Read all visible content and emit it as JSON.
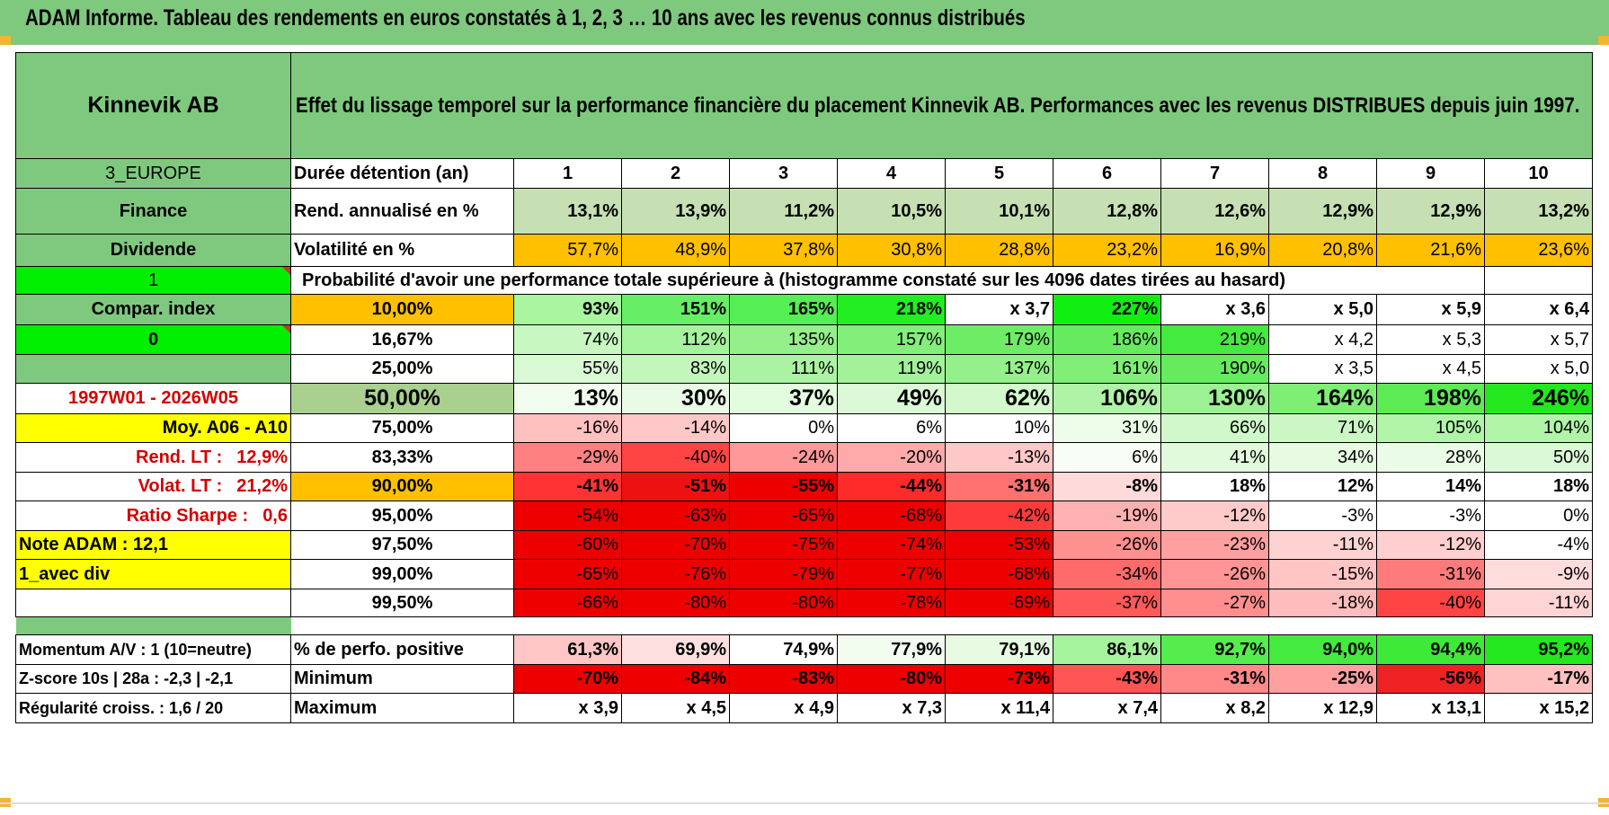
{
  "title": "ADAM Informe. Tableau des rendements en euros constatés à 1, 2, 3 … 10 ans avec les revenus connus distribués",
  "colors": {
    "header_green": "#7fc97f",
    "bright_green": "#00ee00",
    "yellow": "#ffff00",
    "orange": "#ffc000",
    "dark_red": "#ee0000",
    "label_red": "#d40000"
  },
  "sheet": {
    "company": "Kinnevik AB",
    "heading": "Effet du lissage temporel sur la performance financière du placement Kinnevik AB. Performances avec les revenus DISTRIBUES depuis juin 1997.",
    "rows": [
      {
        "label": "3_EUROPE",
        "label_style": "normal",
        "label_bg": "#7fc97f",
        "label_color": "#000000",
        "desc": "Durée détention (an)",
        "desc_bg": "#ffffff",
        "desc_align": "left",
        "row_style": "header",
        "cells": [
          {
            "v": "1",
            "bg": "#ffffff"
          },
          {
            "v": "2",
            "bg": "#ffffff"
          },
          {
            "v": "3",
            "bg": "#ffffff"
          },
          {
            "v": "4",
            "bg": "#ffffff"
          },
          {
            "v": "5",
            "bg": "#ffffff"
          },
          {
            "v": "6",
            "bg": "#ffffff"
          },
          {
            "v": "7",
            "bg": "#ffffff"
          },
          {
            "v": "8",
            "bg": "#ffffff"
          },
          {
            "v": "9",
            "bg": "#ffffff"
          },
          {
            "v": "10",
            "bg": "#ffffff"
          }
        ]
      },
      {
        "label": "Finance",
        "label_style": "bold",
        "label_bg": "#7fc97f",
        "label_color": "#000000",
        "desc": "Rend. annualisé en %",
        "desc_bg": "#ffffff",
        "desc_align": "left",
        "row_style": "bold",
        "cells": [
          {
            "v": "13,1%",
            "bg": "#c6e0b4"
          },
          {
            "v": "13,9%",
            "bg": "#c6e0b4"
          },
          {
            "v": "11,2%",
            "bg": "#c6e0b4"
          },
          {
            "v": "10,5%",
            "bg": "#c6e0b4"
          },
          {
            "v": "10,1%",
            "bg": "#c6e0b4"
          },
          {
            "v": "12,8%",
            "bg": "#c6e0b4"
          },
          {
            "v": "12,6%",
            "bg": "#c6e0b4"
          },
          {
            "v": "12,9%",
            "bg": "#c6e0b4"
          },
          {
            "v": "12,9%",
            "bg": "#c6e0b4"
          },
          {
            "v": "13,2%",
            "bg": "#c6e0b4"
          }
        ]
      },
      {
        "label": "Dividende",
        "label_style": "bold",
        "label_bg": "#7fc97f",
        "label_color": "#000000",
        "desc": "Volatilité en %",
        "desc_bg": "#ffffff",
        "desc_align": "left",
        "row_style": "normal",
        "cells": [
          {
            "v": "57,7%",
            "bg": "#ffc000"
          },
          {
            "v": "48,9%",
            "bg": "#ffc000"
          },
          {
            "v": "37,8%",
            "bg": "#ffc000"
          },
          {
            "v": "30,8%",
            "bg": "#ffc000"
          },
          {
            "v": "28,8%",
            "bg": "#ffc000"
          },
          {
            "v": "23,2%",
            "bg": "#ffc000"
          },
          {
            "v": "16,9%",
            "bg": "#ffc000"
          },
          {
            "v": "20,8%",
            "bg": "#ffc000"
          },
          {
            "v": "21,6%",
            "bg": "#ffc000"
          },
          {
            "v": "23,6%",
            "bg": "#ffc000"
          }
        ]
      },
      {
        "label": "1",
        "label_style": "normal",
        "label_bg": "#00ee00",
        "label_color": "#000000",
        "label_flag": true,
        "probability_note": "Probabilité d'avoir une performance totale supérieure à (histogramme constaté sur les 4096 dates tirées au hasard)"
      },
      {
        "label": "Compar. index",
        "label_style": "bold",
        "label_bg": "#7fc97f",
        "label_color": "#000000",
        "desc": "10,00%",
        "desc_bg": "#ffc000",
        "desc_align": "center",
        "row_style": "bold",
        "cells": [
          {
            "v": "93%",
            "bg": "#a9f5a0"
          },
          {
            "v": "151%",
            "bg": "#66ee66"
          },
          {
            "v": "165%",
            "bg": "#55ee55"
          },
          {
            "v": "218%",
            "bg": "#22ee22"
          },
          {
            "v": "x 3,7",
            "bg": "#ffffff"
          },
          {
            "v": "227%",
            "bg": "#11ee11"
          },
          {
            "v": "x 3,6",
            "bg": "#ffffff"
          },
          {
            "v": "x 5,0",
            "bg": "#ffffff"
          },
          {
            "v": "x 5,9",
            "bg": "#ffffff"
          },
          {
            "v": "x 6,4",
            "bg": "#ffffff"
          }
        ]
      },
      {
        "label": "0",
        "label_style": "bold",
        "label_bg": "#00ee00",
        "label_color": "#000000",
        "label_flag": true,
        "desc": "16,67%",
        "desc_bg": "#ffffff",
        "desc_align": "center",
        "row_style": "normal",
        "cells": [
          {
            "v": "74%",
            "bg": "#c8f7c2"
          },
          {
            "v": "112%",
            "bg": "#a6f39d"
          },
          {
            "v": "135%",
            "bg": "#95f08b"
          },
          {
            "v": "157%",
            "bg": "#84ee7b"
          },
          {
            "v": "179%",
            "bg": "#6fec66"
          },
          {
            "v": "186%",
            "bg": "#66eb5e"
          },
          {
            "v": "219%",
            "bg": "#44ea3d"
          },
          {
            "v": "x 4,2",
            "bg": "#ffffff"
          },
          {
            "v": "x 5,3",
            "bg": "#ffffff"
          },
          {
            "v": "x 5,7",
            "bg": "#ffffff"
          }
        ]
      },
      {
        "label": "",
        "label_style": "normal",
        "label_bg": "#7fc97f",
        "label_color": "#000000",
        "desc": "25,00%",
        "desc_bg": "#ffffff",
        "desc_align": "center",
        "row_style": "normal",
        "cells": [
          {
            "v": "55%",
            "bg": "#d9f9d4"
          },
          {
            "v": "83%",
            "bg": "#c2f6bb"
          },
          {
            "v": "111%",
            "bg": "#abf3a3"
          },
          {
            "v": "119%",
            "bg": "#a3f29a"
          },
          {
            "v": "137%",
            "bg": "#94f08a"
          },
          {
            "v": "161%",
            "bg": "#81ee77"
          },
          {
            "v": "190%",
            "bg": "#66eb5e"
          },
          {
            "v": "x 3,5",
            "bg": "#ffffff"
          },
          {
            "v": "x 4,5",
            "bg": "#ffffff"
          },
          {
            "v": "x 5,0",
            "bg": "#ffffff"
          }
        ]
      },
      {
        "label": "1997W01 - 2026W05",
        "label_style": "bold",
        "label_bg": "#ffffff",
        "label_color": "#d40000",
        "desc": "50,00%",
        "desc_bg": "#a9d08e",
        "desc_align": "center",
        "row_style": "big",
        "cells": [
          {
            "v": "13%",
            "bg": "#f2fdf0"
          },
          {
            "v": "30%",
            "bg": "#e9fbe5"
          },
          {
            "v": "37%",
            "bg": "#e3fbdf"
          },
          {
            "v": "49%",
            "bg": "#dcf9d7"
          },
          {
            "v": "62%",
            "bg": "#d2f8cc"
          },
          {
            "v": "106%",
            "bg": "#aff4a6"
          },
          {
            "v": "130%",
            "bg": "#9cf192"
          },
          {
            "v": "164%",
            "bg": "#7fee75"
          },
          {
            "v": "198%",
            "bg": "#5deb55"
          },
          {
            "v": "246%",
            "bg": "#22e81d"
          }
        ]
      },
      {
        "label": "Moy. A06 - A10",
        "label_style": "bold",
        "label_bg": "#ffff00",
        "label_color": "#000000",
        "label_align": "right",
        "desc": "75,00%",
        "desc_bg": "#ffffff",
        "desc_align": "center",
        "row_style": "normal",
        "cells": [
          {
            "v": "-16%",
            "bg": "#ffc0c0"
          },
          {
            "v": "-14%",
            "bg": "#ffc8c8"
          },
          {
            "v": "0%",
            "bg": "#ffffff"
          },
          {
            "v": "6%",
            "bg": "#ffffff"
          },
          {
            "v": "10%",
            "bg": "#ffffff"
          },
          {
            "v": "31%",
            "bg": "#ecfce8"
          },
          {
            "v": "66%",
            "bg": "#d0f8ca"
          },
          {
            "v": "71%",
            "bg": "#cbf7c4"
          },
          {
            "v": "105%",
            "bg": "#b0f4a8"
          },
          {
            "v": "104%",
            "bg": "#b0f4a8"
          }
        ]
      },
      {
        "label": "Rend. LT :",
        "label_value": "12,9%",
        "label_style": "bold",
        "label_bg": "#ffffff",
        "label_color": "#d40000",
        "label_align": "right",
        "desc": "83,33%",
        "desc_bg": "#ffffff",
        "desc_align": "center",
        "row_style": "normal",
        "cells": [
          {
            "v": "-29%",
            "bg": "#ff8080"
          },
          {
            "v": "-40%",
            "bg": "#ff4444"
          },
          {
            "v": "-24%",
            "bg": "#ff9999"
          },
          {
            "v": "-20%",
            "bg": "#ffaaaa"
          },
          {
            "v": "-13%",
            "bg": "#ffc8c8"
          },
          {
            "v": "6%",
            "bg": "#f8fef6"
          },
          {
            "v": "41%",
            "bg": "#e0faDB"
          },
          {
            "v": "34%",
            "bg": "#e6fbe2"
          },
          {
            "v": "28%",
            "bg": "#eafbe6"
          },
          {
            "v": "50%",
            "bg": "#dbf9d6"
          }
        ]
      },
      {
        "label": "Volat. LT :",
        "label_value": "21,2%",
        "label_style": "bold",
        "label_bg": "#ffffff",
        "label_color": "#d40000",
        "label_align": "right",
        "desc": "90,00%",
        "desc_bg": "#ffc000",
        "desc_align": "center",
        "row_style": "bold",
        "cells": [
          {
            "v": "-41%",
            "bg": "#ff3333"
          },
          {
            "v": "-51%",
            "bg": "#ee1111"
          },
          {
            "v": "-55%",
            "bg": "#ee0000"
          },
          {
            "v": "-44%",
            "bg": "#ff2a2a"
          },
          {
            "v": "-31%",
            "bg": "#ff7070"
          },
          {
            "v": "-8%",
            "bg": "#ffdada"
          },
          {
            "v": "18%",
            "bg": "#ffffff"
          },
          {
            "v": "12%",
            "bg": "#ffffff"
          },
          {
            "v": "14%",
            "bg": "#ffffff"
          },
          {
            "v": "18%",
            "bg": "#ffffff"
          }
        ]
      },
      {
        "label": "Ratio Sharpe :",
        "label_value": "0,6",
        "label_style": "bold",
        "label_bg": "#ffffff",
        "label_color": "#d40000",
        "label_align": "right",
        "desc": "95,00%",
        "desc_bg": "#ffffff",
        "desc_align": "center",
        "row_style": "normal",
        "cells": [
          {
            "v": "-54%",
            "bg": "#ee0000"
          },
          {
            "v": "-63%",
            "bg": "#ee0000"
          },
          {
            "v": "-65%",
            "bg": "#ee0000"
          },
          {
            "v": "-68%",
            "bg": "#ee0000"
          },
          {
            "v": "-42%",
            "bg": "#ff3a3a"
          },
          {
            "v": "-19%",
            "bg": "#ffb0b0"
          },
          {
            "v": "-12%",
            "bg": "#ffcaca"
          },
          {
            "v": "-3%",
            "bg": "#ffffff"
          },
          {
            "v": "-3%",
            "bg": "#ffffff"
          },
          {
            "v": "0%",
            "bg": "#ffffff"
          }
        ]
      },
      {
        "label": "Note ADAM : 12,1",
        "label_style": "bold",
        "label_bg": "#ffff00",
        "label_color": "#000000",
        "label_align": "left",
        "desc": "97,50%",
        "desc_bg": "#ffffff",
        "desc_align": "center",
        "row_style": "normal",
        "cells": [
          {
            "v": "-60%",
            "bg": "#ee0000"
          },
          {
            "v": "-70%",
            "bg": "#ee0000"
          },
          {
            "v": "-75%",
            "bg": "#ee0000"
          },
          {
            "v": "-74%",
            "bg": "#ee0000"
          },
          {
            "v": "-53%",
            "bg": "#ee0000"
          },
          {
            "v": "-26%",
            "bg": "#ff9090"
          },
          {
            "v": "-23%",
            "bg": "#ffa0a0"
          },
          {
            "v": "-11%",
            "bg": "#ffd2d2"
          },
          {
            "v": "-12%",
            "bg": "#ffcece"
          },
          {
            "v": "-4%",
            "bg": "#ffffff"
          }
        ]
      },
      {
        "label": "1_avec div",
        "label_style": "bold",
        "label_bg": "#ffff00",
        "label_color": "#000000",
        "label_align": "left",
        "desc": "99,00%",
        "desc_bg": "#ffffff",
        "desc_align": "center",
        "row_style": "normal",
        "cells": [
          {
            "v": "-65%",
            "bg": "#ee0000"
          },
          {
            "v": "-76%",
            "bg": "#ee0000"
          },
          {
            "v": "-79%",
            "bg": "#ee0000"
          },
          {
            "v": "-77%",
            "bg": "#ee0000"
          },
          {
            "v": "-68%",
            "bg": "#ee0000"
          },
          {
            "v": "-34%",
            "bg": "#ff6a6a"
          },
          {
            "v": "-26%",
            "bg": "#ff9494"
          },
          {
            "v": "-15%",
            "bg": "#ffc4c4"
          },
          {
            "v": "-31%",
            "bg": "#ff7a7a"
          },
          {
            "v": "-9%",
            "bg": "#ffdcdc"
          }
        ]
      },
      {
        "label": "",
        "label_style": "normal",
        "label_bg": "#ffffff",
        "label_color": "#000000",
        "desc": "99,50%",
        "desc_bg": "#ffffff",
        "desc_align": "center",
        "row_style": "normal",
        "cells": [
          {
            "v": "-66%",
            "bg": "#ee0000"
          },
          {
            "v": "-80%",
            "bg": "#ee0000"
          },
          {
            "v": "-80%",
            "bg": "#ee0000"
          },
          {
            "v": "-78%",
            "bg": "#ee0000"
          },
          {
            "v": "-69%",
            "bg": "#ee0000"
          },
          {
            "v": "-37%",
            "bg": "#ff5a5a"
          },
          {
            "v": "-27%",
            "bg": "#ff8e8e"
          },
          {
            "v": "-18%",
            "bg": "#ffbcbc"
          },
          {
            "v": "-40%",
            "bg": "#ff4444"
          },
          {
            "v": "-11%",
            "bg": "#ffd4d4"
          }
        ]
      }
    ],
    "bottom_rows": [
      {
        "label": "Momentum A/V : 1 (10=neutre)",
        "desc": "% de perfo. positive",
        "cells": [
          {
            "v": "61,3%",
            "bg": "#ffc6c6"
          },
          {
            "v": "69,9%",
            "bg": "#ffe0e0"
          },
          {
            "v": "74,9%",
            "bg": "#ffffff"
          },
          {
            "v": "77,9%",
            "bg": "#f2fdf0"
          },
          {
            "v": "79,1%",
            "bg": "#e6fbe2"
          },
          {
            "v": "86,1%",
            "bg": "#a6f39d"
          },
          {
            "v": "92,7%",
            "bg": "#55ec4e"
          },
          {
            "v": "94,0%",
            "bg": "#44ea3d"
          },
          {
            "v": "94,4%",
            "bg": "#3ee937"
          },
          {
            "v": "95,2%",
            "bg": "#22e81d"
          }
        ]
      },
      {
        "label": "Z-score 10s | 28a : -2,3 | -2,1",
        "desc": "Minimum",
        "cells": [
          {
            "v": "-70%",
            "bg": "#ee0000"
          },
          {
            "v": "-84%",
            "bg": "#ee0000"
          },
          {
            "v": "-83%",
            "bg": "#ee0000"
          },
          {
            "v": "-80%",
            "bg": "#ee0000"
          },
          {
            "v": "-73%",
            "bg": "#ee0000"
          },
          {
            "v": "-43%",
            "bg": "#ff5555"
          },
          {
            "v": "-31%",
            "bg": "#ff8888"
          },
          {
            "v": "-25%",
            "bg": "#ffa0a0"
          },
          {
            "v": "-56%",
            "bg": "#ee2222"
          },
          {
            "v": "-17%",
            "bg": "#ffc0c0"
          }
        ]
      },
      {
        "label": "Régularité croiss. : 1,6 / 20",
        "desc": "Maximum",
        "cells": [
          {
            "v": "x 3,9",
            "bg": "#ffffff"
          },
          {
            "v": "x 4,5",
            "bg": "#ffffff"
          },
          {
            "v": "x 4,9",
            "bg": "#ffffff"
          },
          {
            "v": "x 7,3",
            "bg": "#ffffff"
          },
          {
            "v": "x 11,4",
            "bg": "#ffffff"
          },
          {
            "v": "x 7,4",
            "bg": "#ffffff"
          },
          {
            "v": "x 8,2",
            "bg": "#ffffff"
          },
          {
            "v": "x 12,9",
            "bg": "#ffffff"
          },
          {
            "v": "x 13,1",
            "bg": "#ffffff"
          },
          {
            "v": "x 15,2",
            "bg": "#ffffff"
          }
        ]
      }
    ]
  }
}
